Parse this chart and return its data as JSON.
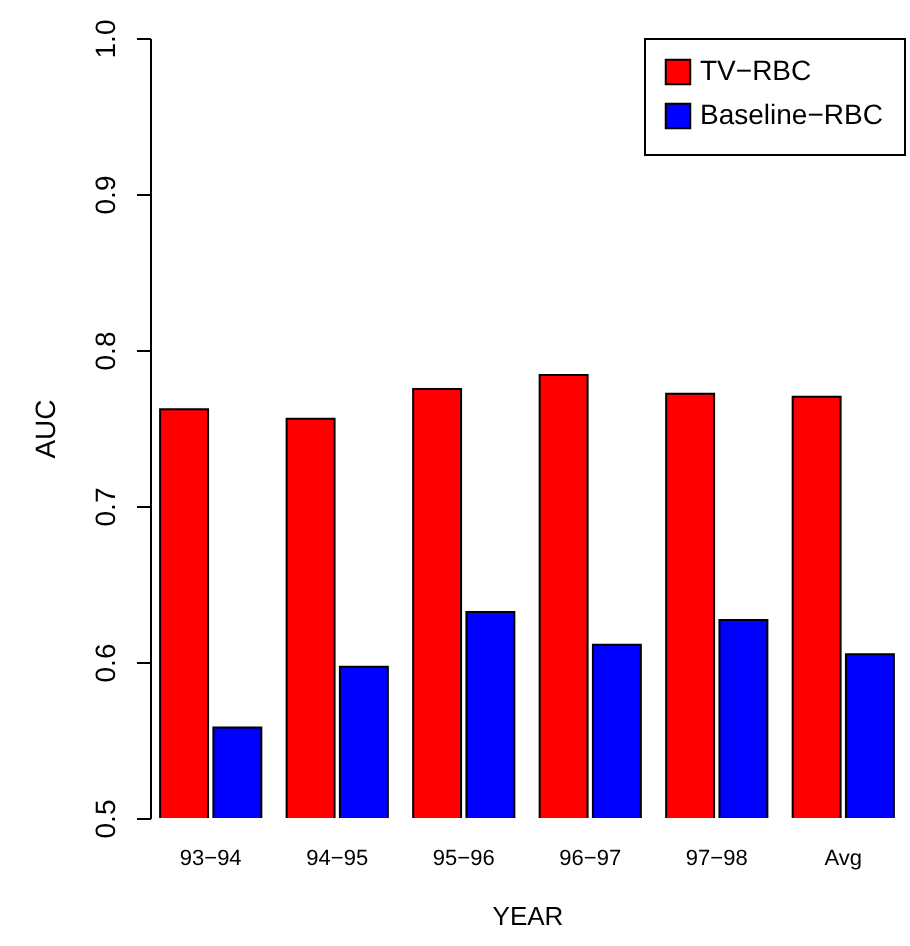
{
  "chart_data": {
    "type": "bar",
    "xlabel": "YEAR",
    "ylabel": "AUC",
    "categories": [
      "93−94",
      "94−95",
      "95−96",
      "96−97",
      "97−98",
      "Avg"
    ],
    "series": [
      {
        "name": "TV−RBC",
        "color": "#ff0000",
        "values": [
          0.762,
          0.756,
          0.775,
          0.784,
          0.772,
          0.77
        ]
      },
      {
        "name": "Baseline−RBC",
        "color": "#0000ff",
        "values": [
          0.558,
          0.597,
          0.632,
          0.611,
          0.627,
          0.605
        ]
      }
    ],
    "ylim": [
      0.5,
      1.0
    ],
    "yticks": [
      0.5,
      0.6,
      0.7,
      0.8,
      0.9,
      {
        "value": 1,
        "label": "1.0"
      }
    ],
    "grid": false,
    "legend": "top right"
  }
}
